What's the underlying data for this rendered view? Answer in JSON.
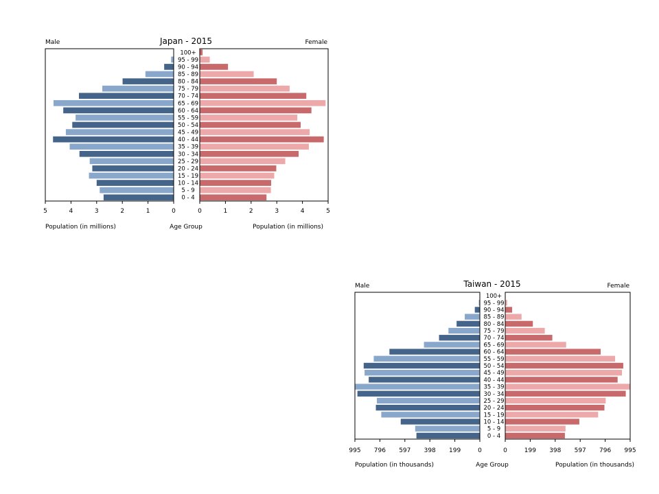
{
  "chart_data": [
    {
      "type": "bar",
      "title": "Japan - 2015",
      "left_label": "Male",
      "right_label": "Female",
      "xlabel_left": "Population (in millions)",
      "xlabel_center": "Age Group",
      "xlabel_right": "Population (in millions)",
      "xlim": [
        0,
        5
      ],
      "ticks_left": [
        "5",
        "4",
        "3",
        "2",
        "1",
        "0"
      ],
      "ticks_right": [
        "0",
        "1",
        "2",
        "3",
        "4",
        "5"
      ],
      "categories": [
        "100+",
        "95 - 99",
        "90 - 94",
        "85 - 89",
        "80 - 84",
        "75 - 79",
        "70 - 74",
        "65 - 69",
        "60 - 64",
        "55 - 59",
        "50 - 54",
        "45 - 49",
        "40 - 44",
        "35 - 39",
        "30 - 34",
        "25 - 29",
        "20 - 24",
        "15 - 19",
        "10 - 14",
        "5 - 9",
        "0 - 4"
      ],
      "series": [
        {
          "name": "Male",
          "values": [
            0.01,
            0.1,
            0.37,
            1.1,
            1.99,
            2.78,
            3.69,
            4.68,
            4.3,
            3.82,
            3.95,
            4.2,
            4.7,
            4.05,
            3.67,
            3.27,
            3.17,
            3.3,
            3.0,
            2.88,
            2.73
          ]
        },
        {
          "name": "Female",
          "values": [
            0.11,
            0.39,
            1.1,
            2.1,
            3.0,
            3.5,
            4.15,
            4.9,
            4.35,
            3.8,
            3.93,
            4.28,
            4.83,
            4.25,
            3.85,
            3.33,
            2.98,
            2.9,
            2.78,
            2.77,
            2.6
          ]
        }
      ],
      "colors": {
        "male_dark": "#44648a",
        "male_light": "#89a7cb",
        "female_dark": "#c86a6b",
        "female_light": "#eda9aa"
      }
    },
    {
      "type": "bar",
      "title": "Taiwan - 2015",
      "left_label": "Male",
      "right_label": "Female",
      "xlabel_left": "Population (in thousands)",
      "xlabel_center": "Age Group",
      "xlabel_right": "Population (in thousands)",
      "xlim": [
        0,
        995
      ],
      "ticks_left": [
        "995",
        "796",
        "597",
        "398",
        "199",
        "0"
      ],
      "ticks_right": [
        "0",
        "199",
        "398",
        "597",
        "796",
        "995"
      ],
      "categories": [
        "100+",
        "95 - 99",
        "90 - 94",
        "85 - 89",
        "80 - 84",
        "75 - 79",
        "70 - 74",
        "65 - 69",
        "60 - 64",
        "55 - 59",
        "50 - 54",
        "45 - 49",
        "40 - 44",
        "35 - 39",
        "30 - 34",
        "25 - 29",
        "20 - 24",
        "15 - 19",
        "10 - 14",
        "5 - 9",
        "0 - 4"
      ],
      "series": [
        {
          "name": "Male",
          "values": [
            2,
            8,
            40,
            120,
            185,
            250,
            325,
            445,
            720,
            845,
            925,
            918,
            885,
            995,
            975,
            820,
            828,
            785,
            630,
            515,
            505
          ]
        },
        {
          "name": "Female",
          "values": [
            3,
            15,
            55,
            130,
            220,
            315,
            375,
            485,
            760,
            875,
            940,
            930,
            895,
            995,
            960,
            800,
            790,
            740,
            590,
            480,
            475
          ]
        }
      ],
      "colors": {
        "male_dark": "#44648a",
        "male_light": "#89a7cb",
        "female_dark": "#c86a6b",
        "female_light": "#eda9aa"
      }
    }
  ]
}
